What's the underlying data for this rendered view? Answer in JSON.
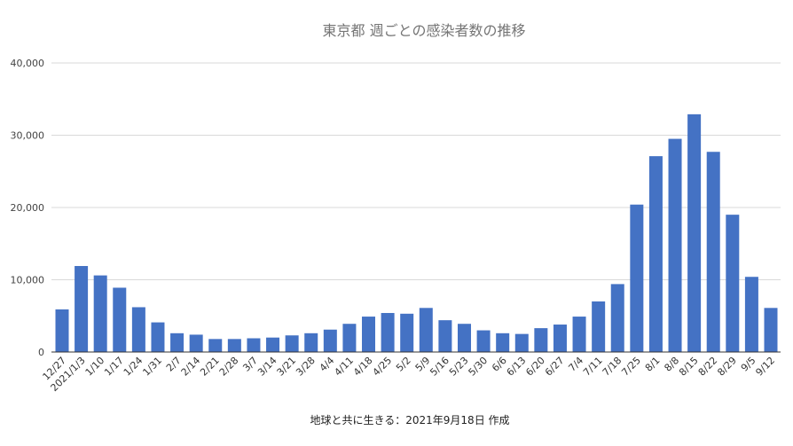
{
  "chart_data": {
    "type": "bar",
    "title": "東京都 週ごとの感染者数の推移",
    "caption": "地球と共に生きる：2021年9月18日 作成",
    "xlabel": "",
    "ylabel": "",
    "ylim": [
      0,
      40000
    ],
    "yticks": [
      0,
      10000,
      20000,
      30000,
      40000
    ],
    "ytick_labels": [
      "0",
      "10,000",
      "20,000",
      "30,000",
      "40,000"
    ],
    "grid": true,
    "legend": "none",
    "bar_color": "#4472c4",
    "categories": [
      "12/27",
      "2021/1/3",
      "1/10",
      "1/17",
      "1/24",
      "1/31",
      "2/7",
      "2/14",
      "2/21",
      "2/28",
      "3/7",
      "3/14",
      "3/21",
      "3/28",
      "4/4",
      "4/11",
      "4/18",
      "4/25",
      "5/2",
      "5/9",
      "5/16",
      "5/23",
      "5/30",
      "6/6",
      "6/13",
      "6/20",
      "6/27",
      "7/4",
      "7/11",
      "7/18",
      "7/25",
      "8/1",
      "8/8",
      "8/15",
      "8/22",
      "8/29",
      "9/5",
      "9/12"
    ],
    "values": [
      5900,
      11900,
      10600,
      8900,
      6200,
      4100,
      2600,
      2400,
      1800,
      1800,
      1900,
      2000,
      2300,
      2600,
      3100,
      3900,
      4900,
      5400,
      5300,
      6100,
      4400,
      3900,
      3000,
      2600,
      2500,
      3300,
      3800,
      4900,
      7000,
      9400,
      20400,
      27100,
      29500,
      32900,
      27700,
      19000,
      10400,
      6100
    ]
  }
}
